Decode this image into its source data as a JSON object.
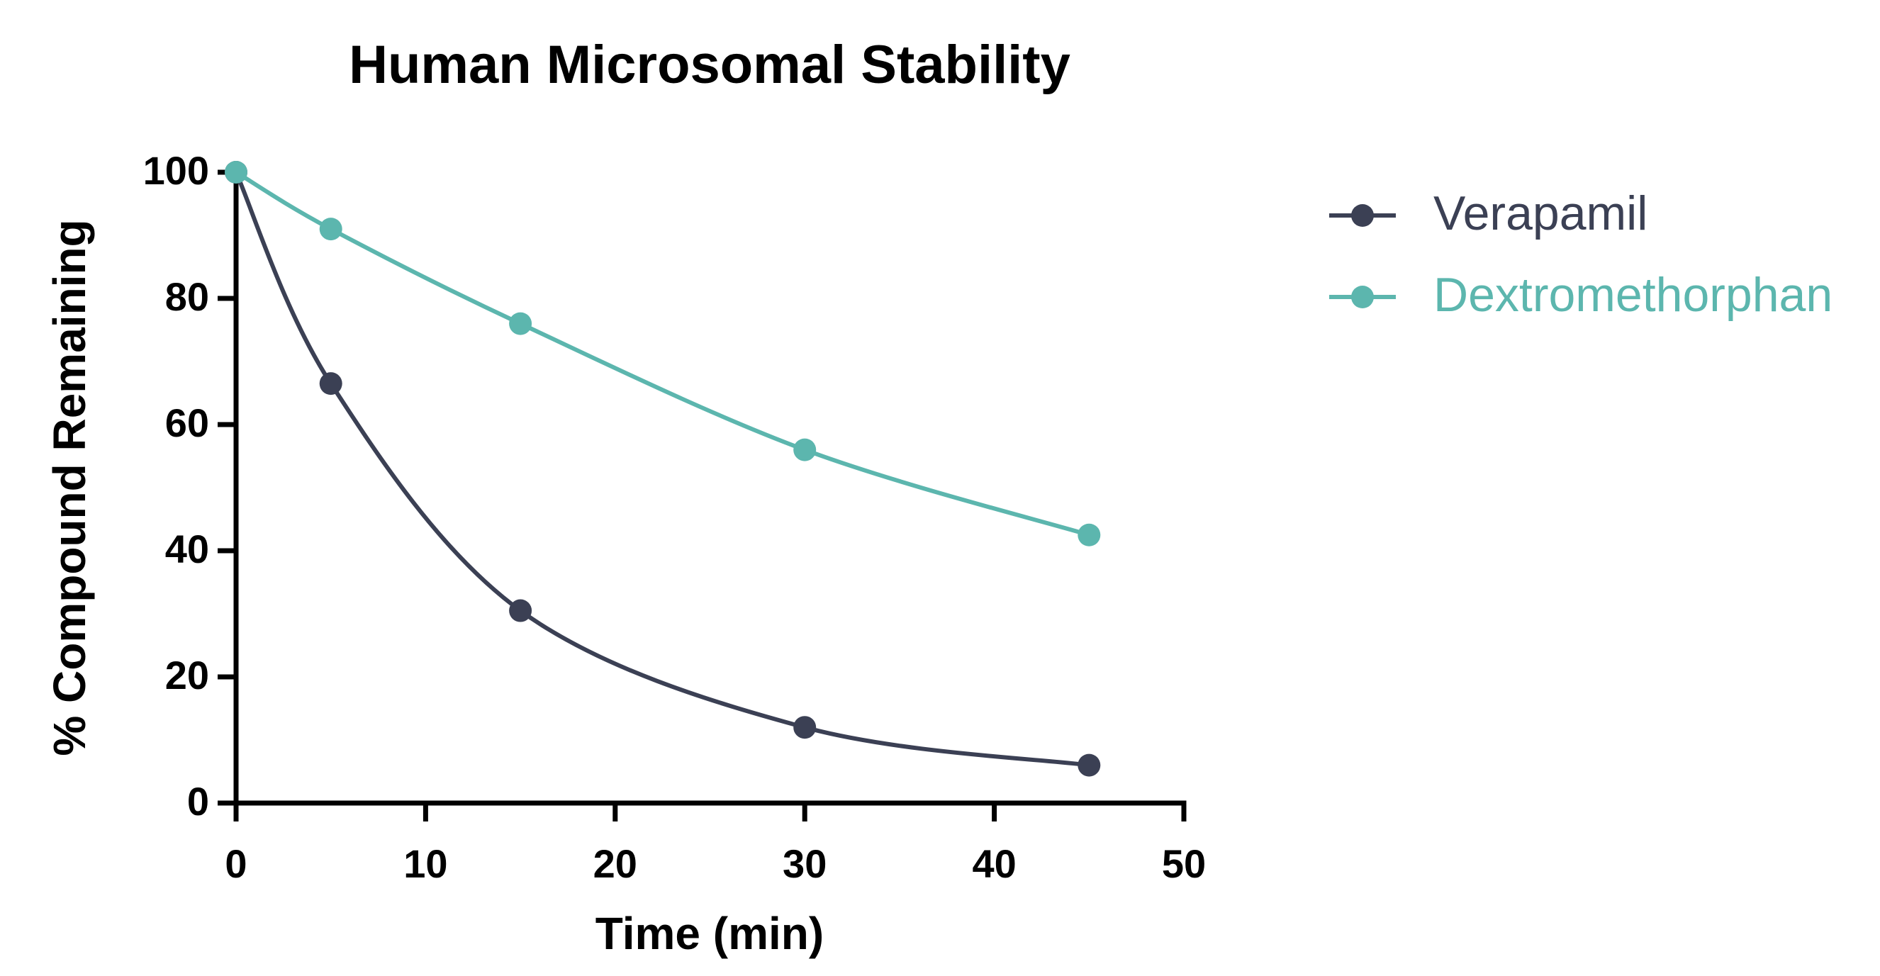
{
  "chart_data": {
    "type": "line",
    "title": "Human Microsomal Stability",
    "x_label": "Time (min)",
    "y_label": "% Compound Remaining",
    "x": [
      0,
      5,
      15,
      30,
      45
    ],
    "series": [
      {
        "name": "Verapamil",
        "color": "#3b4054",
        "values": [
          100,
          66.5,
          30.5,
          12,
          6
        ]
      },
      {
        "name": "Dextromethorphan",
        "color": "#5cb6ae",
        "values": [
          100,
          91,
          76,
          56,
          42.5
        ]
      }
    ],
    "xlim": [
      0,
      50
    ],
    "xticks": [
      0,
      10,
      20,
      30,
      40,
      50
    ],
    "ylim": [
      0,
      100
    ],
    "yticks": [
      0,
      20,
      40,
      60,
      80,
      100
    ]
  }
}
